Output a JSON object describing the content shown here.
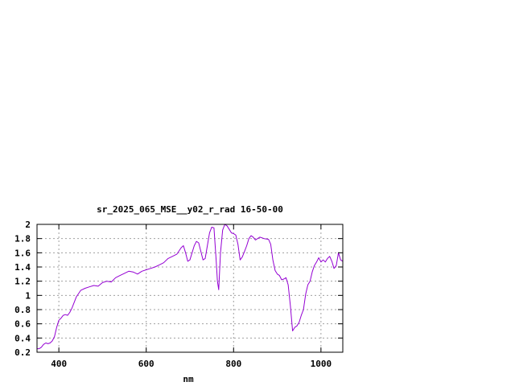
{
  "chart_data": {
    "type": "line",
    "title": "sr_2025_065_MSE__y02_r_rad 16-50-00",
    "xlabel": "nm",
    "ylabel": "",
    "xlim": [
      350,
      1050
    ],
    "ylim": [
      0.2,
      2.0
    ],
    "grid": true,
    "legend": "none",
    "x_ticks": [
      "400",
      "600",
      "800",
      "1000"
    ],
    "y_ticks": [
      "0.2",
      "0.4",
      "0.6",
      "0.8",
      "1",
      "1.2",
      "1.4",
      "1.6",
      "1.8",
      "2"
    ],
    "colors": {
      "line": "#9400d3",
      "grid": "#a0a0a0",
      "axis": "#000000"
    },
    "series": [
      {
        "name": "",
        "x": [
          350,
          355,
          360,
          365,
          370,
          375,
          380,
          385,
          390,
          395,
          400,
          405,
          410,
          415,
          420,
          425,
          430,
          440,
          450,
          460,
          470,
          480,
          490,
          500,
          510,
          520,
          530,
          540,
          550,
          560,
          570,
          580,
          590,
          600,
          610,
          620,
          630,
          640,
          650,
          660,
          670,
          680,
          685,
          690,
          695,
          700,
          705,
          710,
          715,
          720,
          725,
          730,
          735,
          740,
          745,
          750,
          755,
          760,
          763,
          766,
          770,
          775,
          780,
          785,
          790,
          795,
          800,
          805,
          810,
          815,
          820,
          825,
          830,
          835,
          840,
          845,
          850,
          855,
          860,
          870,
          880,
          885,
          890,
          895,
          900,
          905,
          910,
          915,
          920,
          925,
          930,
          935,
          940,
          945,
          950,
          955,
          960,
          965,
          970,
          975,
          980,
          985,
          990,
          995,
          1000,
          1005,
          1010,
          1015,
          1020,
          1025,
          1030,
          1035,
          1040,
          1045,
          1050
        ],
        "y": [
          0.25,
          0.25,
          0.27,
          0.31,
          0.33,
          0.32,
          0.33,
          0.36,
          0.42,
          0.55,
          0.65,
          0.68,
          0.72,
          0.73,
          0.72,
          0.76,
          0.82,
          0.98,
          1.07,
          1.1,
          1.12,
          1.14,
          1.13,
          1.18,
          1.2,
          1.19,
          1.25,
          1.28,
          1.31,
          1.34,
          1.33,
          1.3,
          1.34,
          1.36,
          1.38,
          1.4,
          1.43,
          1.46,
          1.52,
          1.55,
          1.58,
          1.67,
          1.7,
          1.6,
          1.48,
          1.5,
          1.6,
          1.7,
          1.76,
          1.74,
          1.62,
          1.5,
          1.52,
          1.7,
          1.88,
          1.96,
          1.95,
          1.5,
          1.2,
          1.08,
          1.6,
          1.92,
          2.0,
          1.98,
          1.93,
          1.88,
          1.87,
          1.85,
          1.72,
          1.5,
          1.54,
          1.62,
          1.7,
          1.8,
          1.84,
          1.82,
          1.78,
          1.8,
          1.82,
          1.8,
          1.79,
          1.72,
          1.5,
          1.35,
          1.3,
          1.28,
          1.22,
          1.23,
          1.25,
          1.15,
          0.85,
          0.5,
          0.55,
          0.57,
          0.62,
          0.72,
          0.8,
          1.02,
          1.15,
          1.2,
          1.33,
          1.42,
          1.47,
          1.53,
          1.47,
          1.5,
          1.47,
          1.52,
          1.55,
          1.48,
          1.38,
          1.42,
          1.6,
          1.5,
          1.48
        ]
      }
    ]
  }
}
